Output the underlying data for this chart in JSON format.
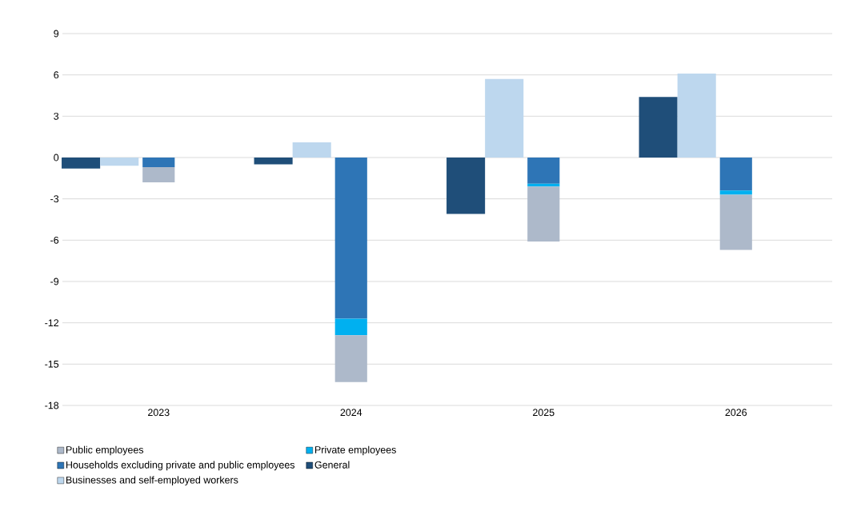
{
  "chart_data": {
    "type": "bar",
    "categories": [
      "2023",
      "2024",
      "2025",
      "2026"
    ],
    "series": [
      {
        "name": "Households excluding private and public employees",
        "color": "#2e75b6",
        "values": [
          -0.7,
          -11.7,
          -1.9,
          -2.4
        ],
        "base": [
          0,
          0,
          0,
          0
        ]
      },
      {
        "name": "Private employees",
        "color": "#00b0f0",
        "values": [
          null,
          -1.2,
          -0.2,
          -0.3
        ],
        "base": [
          null,
          -11.7,
          -1.9,
          -2.4
        ]
      },
      {
        "name": "Public employees",
        "color": "#adb9ca",
        "values": [
          -1.1,
          -3.4,
          -4.0,
          -4.0
        ],
        "base": [
          -0.7,
          -12.9,
          -2.1,
          -2.7
        ]
      },
      {
        "name": "General",
        "color": "#1f4e79",
        "values": [
          -0.8,
          -0.5,
          -4.1,
          4.4
        ]
      },
      {
        "name": "Businesses and self-employed workers",
        "color": "#bdd7ee",
        "values": [
          -0.6,
          1.1,
          5.7,
          6.1
        ]
      }
    ],
    "ylim": [
      -18,
      9
    ],
    "yticks": [
      -18,
      -15,
      -12,
      -9,
      -6,
      -3,
      0,
      3,
      6,
      9
    ],
    "grid": "y",
    "legend": "bottom"
  }
}
